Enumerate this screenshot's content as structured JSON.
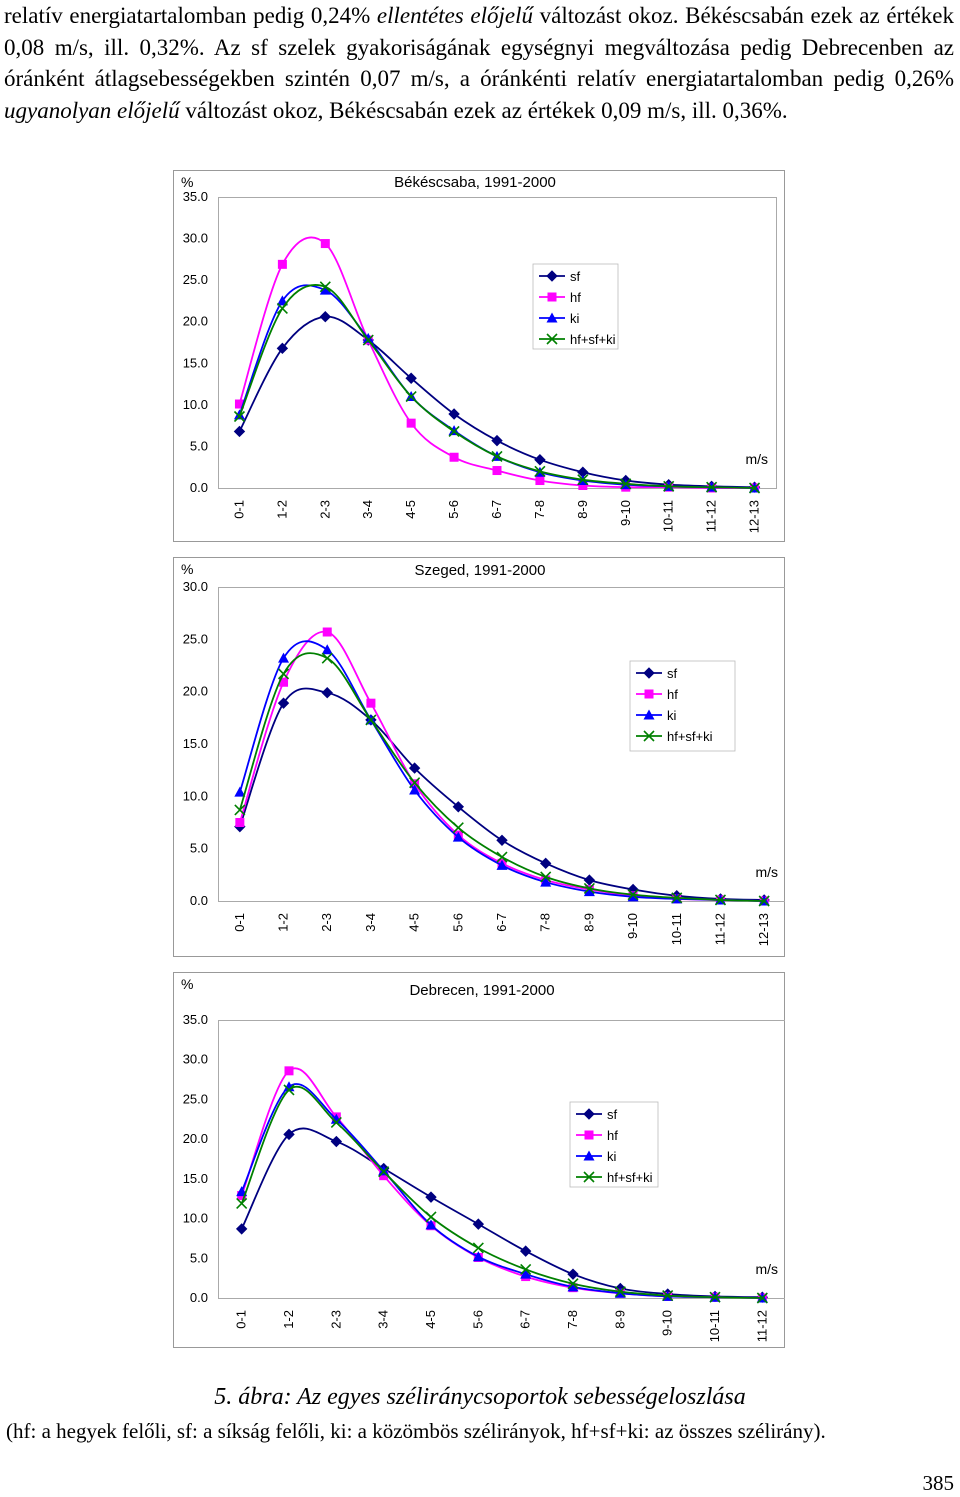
{
  "text": {
    "p1": "relatív energiatartalomban pedig 0,24%",
    "p1_em": "ellentétes előjelű",
    "p2": "változást okoz. Békéscsabán ezek az értékek 0,08 m/s, ill. 0,32%. Az sf szelek gyakoriságának egységnyi megváltozása pedig Debrecenben az óránként átlagsebességekben szintén 0,07 m/s, a óránkénti relatív energiatartalomban pedig 0,26%",
    "p2_em": "ugyanolyan előjelű",
    "p3": "változást okoz, Békéscsabán ezek az értékek 0,09 m/s, ill. 0,36%."
  },
  "caption": "5. ábra: Az egyes széliránycsoportok sebességeloszlása",
  "note": "(hf: a hegyek felőli, sf: a síkság felőli, ki: a közömbös szélirányok, hf+sf+ki: az összes szélirány).",
  "page_number": "385",
  "colors": {
    "sf": "#000080",
    "hf": "#ff00ff",
    "ki": "#0000ff",
    "all": "#008000"
  },
  "chart_data": [
    {
      "type": "line",
      "title": "Békéscsaba, 1991-2000",
      "ylabel": "%",
      "xlabel": "m/s",
      "ylim": [
        0,
        35
      ],
      "yticks": [
        "0.0",
        "5.0",
        "10.0",
        "15.0",
        "20.0",
        "25.0",
        "30.0",
        "35.0"
      ],
      "categories": [
        "0-1",
        "1-2",
        "2-3",
        "3-4",
        "4-5",
        "5-6",
        "6-7",
        "7-8",
        "8-9",
        "9-10",
        "10-11",
        "11-12",
        "12-13"
      ],
      "legend": "right",
      "series": [
        {
          "name": "sf",
          "marker": "diamond",
          "values": [
            6.8,
            16.8,
            20.6,
            17.8,
            13.2,
            8.9,
            5.7,
            3.4,
            1.9,
            0.9,
            0.4,
            0.2,
            0.1
          ]
        },
        {
          "name": "hf",
          "marker": "square",
          "values": [
            10.1,
            26.9,
            29.4,
            17.8,
            7.8,
            3.7,
            2.1,
            0.9,
            0.3,
            0.1,
            0.1,
            0.0,
            0.0
          ]
        },
        {
          "name": "ki",
          "marker": "triangle",
          "values": [
            8.8,
            22.5,
            23.8,
            18.0,
            11.0,
            6.9,
            3.8,
            1.9,
            0.9,
            0.4,
            0.2,
            0.1,
            0.0
          ]
        },
        {
          "name": "hf+sf+ki",
          "marker": "x",
          "values": [
            8.6,
            21.6,
            24.2,
            17.8,
            11.0,
            6.8,
            3.8,
            2.0,
            1.0,
            0.5,
            0.2,
            0.1,
            0.0
          ]
        }
      ]
    },
    {
      "type": "line",
      "title": "Szeged, 1991-2000",
      "ylabel": "%",
      "xlabel": "m/s",
      "ylim": [
        0,
        30
      ],
      "yticks": [
        "0.0",
        "5.0",
        "10.0",
        "15.0",
        "20.0",
        "25.0",
        "30.0"
      ],
      "categories": [
        "0-1",
        "1-2",
        "2-3",
        "3-4",
        "4-5",
        "5-6",
        "6-7",
        "7-8",
        "8-9",
        "9-10",
        "10-11",
        "11-12",
        "12-13"
      ],
      "legend": "right",
      "series": [
        {
          "name": "sf",
          "marker": "diamond",
          "values": [
            7.1,
            18.9,
            19.9,
            17.3,
            12.7,
            9.0,
            5.8,
            3.6,
            2.0,
            1.1,
            0.5,
            0.2,
            0.1
          ]
        },
        {
          "name": "hf",
          "marker": "square",
          "values": [
            7.5,
            20.9,
            25.7,
            18.9,
            11.2,
            6.3,
            3.6,
            2.0,
            1.1,
            0.5,
            0.2,
            0.1,
            0.0
          ]
        },
        {
          "name": "ki",
          "marker": "triangle",
          "values": [
            10.4,
            23.2,
            24.0,
            17.3,
            10.6,
            6.1,
            3.4,
            1.8,
            0.9,
            0.4,
            0.2,
            0.1,
            0.0
          ]
        },
        {
          "name": "hf+sf+ki",
          "marker": "x",
          "values": [
            8.7,
            21.7,
            23.2,
            17.3,
            11.3,
            7.0,
            4.2,
            2.3,
            1.2,
            0.6,
            0.3,
            0.1,
            0.0
          ]
        }
      ]
    },
    {
      "type": "line",
      "title": "Debrecen, 1991-2000",
      "ylabel": "%",
      "xlabel": "m/s",
      "ylim": [
        0,
        35
      ],
      "yticks": [
        "0.0",
        "5.0",
        "10.0",
        "15.0",
        "20.0",
        "25.0",
        "30.0",
        "35.0"
      ],
      "categories": [
        "0-1",
        "1-2",
        "2-3",
        "3-4",
        "4-5",
        "5-6",
        "6-7",
        "7-8",
        "8-9",
        "9-10",
        "10-11",
        "11-12"
      ],
      "legend": "right",
      "series": [
        {
          "name": "sf",
          "marker": "diamond",
          "values": [
            8.7,
            20.6,
            19.7,
            16.3,
            12.7,
            9.3,
            5.9,
            3.0,
            1.2,
            0.5,
            0.2,
            0.1
          ]
        },
        {
          "name": "hf",
          "marker": "square",
          "values": [
            12.9,
            28.6,
            22.8,
            15.4,
            9.1,
            5.1,
            2.7,
            1.3,
            0.6,
            0.2,
            0.1,
            0.0
          ]
        },
        {
          "name": "ki",
          "marker": "triangle",
          "values": [
            13.4,
            26.6,
            22.5,
            16.0,
            9.2,
            5.2,
            3.0,
            1.4,
            0.6,
            0.2,
            0.1,
            0.0
          ]
        },
        {
          "name": "hf+sf+ki",
          "marker": "x",
          "values": [
            11.9,
            26.2,
            22.1,
            15.9,
            10.2,
            6.3,
            3.6,
            1.8,
            0.8,
            0.3,
            0.1,
            0.0
          ]
        }
      ]
    }
  ]
}
